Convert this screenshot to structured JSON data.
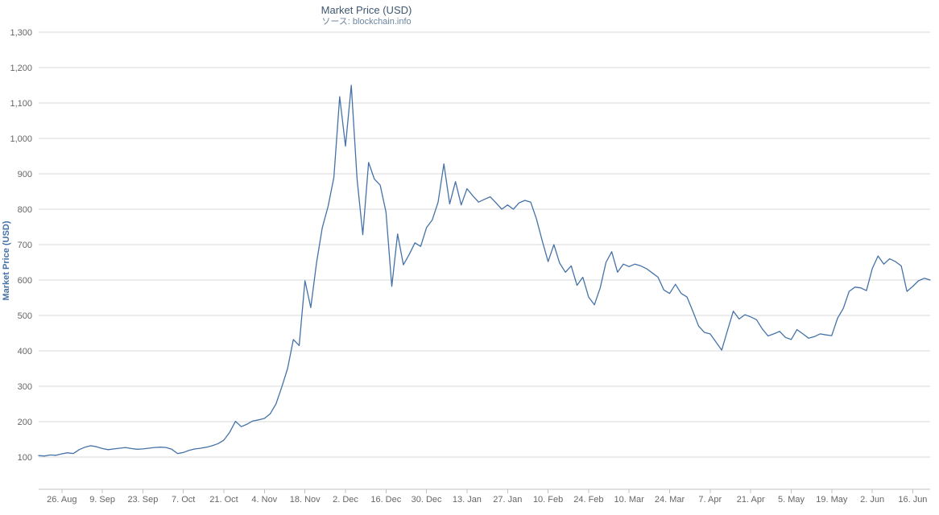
{
  "page": {
    "background": "#FFFFFF"
  },
  "chart_data": {
    "type": "line",
    "title": "Market Price (USD)",
    "subtitle": "ソース: blockchain.info",
    "ylabel": "Market Price (USD)",
    "xlabel": "",
    "ylim": [
      0,
      1300
    ],
    "grid": "horizontal",
    "legend": "none",
    "yticks": {
      "values": [
        100,
        200,
        300,
        400,
        500,
        600,
        700,
        800,
        900,
        1000,
        1100,
        1200,
        1300
      ],
      "labels": [
        "100",
        "200",
        "300",
        "400",
        "500",
        "600",
        "700",
        "800",
        "900",
        "1,000",
        "1,100",
        "1,200",
        "1,300"
      ]
    },
    "x_tick_labels": [
      "26. Aug",
      "9. Sep",
      "23. Sep",
      "7. Oct",
      "21. Oct",
      "4. Nov",
      "18. Nov",
      "2. Dec",
      "16. Dec",
      "30. Dec",
      "13. Jan",
      "27. Jan",
      "10. Feb",
      "24. Feb",
      "10. Mar",
      "24. Mar",
      "7. Apr",
      "21. Apr",
      "5. May",
      "19. May",
      "2. Jun",
      "16. Jun"
    ],
    "x_tick_indices": [
      4,
      11,
      18,
      25,
      32,
      39,
      46,
      53,
      60,
      67,
      74,
      81,
      88,
      95,
      102,
      109,
      116,
      123,
      130,
      137,
      144,
      151
    ],
    "colors": {
      "line": "#4572A7",
      "grid": "#D8D8D8",
      "axis_line": "#C0C0C0",
      "tick_label": "#666666",
      "title": "#3E576F",
      "subtitle": "#6D869F",
      "y_axis_title": "#4572A7"
    },
    "series": [
      {
        "name": "Market Price (USD)",
        "color": "#4572A7",
        "values": [
          104,
          103,
          106,
          105,
          109,
          112,
          110,
          121,
          128,
          132,
          129,
          124,
          121,
          123,
          125,
          127,
          124,
          122,
          123,
          125,
          127,
          128,
          127,
          122,
          110,
          113,
          119,
          123,
          125,
          128,
          132,
          138,
          148,
          170,
          201,
          186,
          193,
          202,
          205,
          209,
          222,
          250,
          298,
          350,
          432,
          415,
          598,
          522,
          648,
          748,
          808,
          890,
          1118,
          978,
          1150,
          885,
          728,
          932,
          885,
          868,
          792,
          582,
          730,
          643,
          672,
          705,
          695,
          748,
          770,
          820,
          928,
          815,
          878,
          812,
          858,
          838,
          820,
          828,
          835,
          818,
          800,
          812,
          800,
          818,
          825,
          820,
          772,
          710,
          652,
          700,
          648,
          622,
          640,
          585,
          608,
          552,
          530,
          578,
          650,
          680,
          622,
          645,
          638,
          645,
          640,
          632,
          620,
          608,
          572,
          562,
          588,
          562,
          552,
          512,
          470,
          452,
          448,
          425,
          402,
          458,
          512,
          490,
          502,
          496,
          488,
          462,
          442,
          448,
          455,
          438,
          432,
          460,
          448,
          436,
          440,
          448,
          445,
          443,
          492,
          520,
          568,
          580,
          578,
          570,
          632,
          668,
          645,
          660,
          652,
          640,
          568,
          582,
          598,
          605,
          600
        ]
      }
    ]
  }
}
